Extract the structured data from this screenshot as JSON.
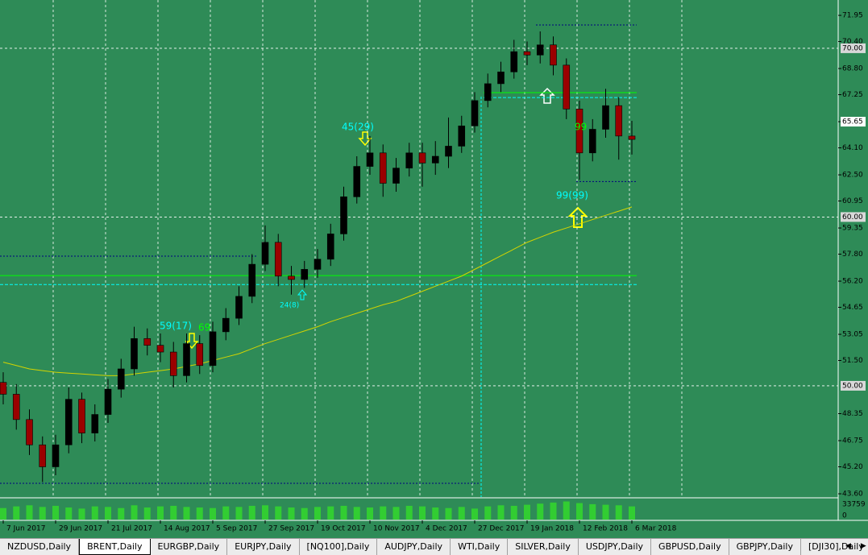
{
  "chart_data": {
    "type": "candlestick",
    "categories": [
      "7 Jun 2017",
      null,
      null,
      null,
      "29 Jun 2017",
      null,
      null,
      null,
      "21 Jul 2017",
      null,
      null,
      null,
      "14 Aug 2017",
      null,
      null,
      null,
      "5 Sep 2017",
      null,
      null,
      null,
      "27 Sep 2017",
      null,
      null,
      null,
      "19 Oct 2017",
      null,
      null,
      null,
      "10 Nov 2017",
      null,
      null,
      null,
      "4 Dec 2017",
      null,
      null,
      null,
      "27 Dec 2017",
      null,
      null,
      null,
      "19 Jan 2018",
      null,
      null,
      null,
      "12 Feb 2018",
      null,
      null,
      null,
      "6 Mar 2018"
    ],
    "open": [
      50.2,
      49.5,
      48.0,
      46.5,
      45.2,
      46.5,
      49.2,
      47.2,
      48.3,
      49.8,
      51.0,
      52.8,
      52.4,
      52.0,
      50.6,
      52.5,
      51.2,
      53.2,
      54.0,
      55.3,
      57.2,
      58.5,
      56.5,
      56.3,
      56.9,
      57.5,
      59.0,
      61.2,
      63.0,
      63.8,
      62.0,
      62.9,
      63.8,
      63.2,
      63.6,
      64.2,
      65.4,
      66.9,
      67.9,
      68.6,
      69.8,
      69.6,
      70.2,
      69.0,
      66.4,
      63.8,
      65.2,
      66.6,
      64.8
    ],
    "high": [
      50.8,
      50.1,
      48.6,
      47.0,
      47.1,
      49.9,
      49.6,
      48.9,
      50.4,
      51.6,
      53.5,
      53.4,
      53.1,
      52.6,
      53.1,
      53.0,
      53.8,
      54.6,
      55.9,
      57.8,
      59.5,
      59.0,
      57.1,
      57.4,
      58.1,
      59.6,
      61.8,
      63.6,
      64.8,
      64.3,
      63.5,
      64.4,
      64.4,
      64.5,
      65.9,
      66.0,
      67.4,
      68.5,
      69.2,
      70.5,
      70.4,
      71.0,
      70.7,
      69.4,
      66.9,
      65.8,
      67.6,
      67.1,
      65.7
    ],
    "low": [
      48.9,
      47.4,
      45.9,
      44.3,
      44.7,
      46.0,
      46.6,
      46.7,
      47.8,
      49.3,
      50.6,
      51.8,
      51.4,
      49.9,
      50.2,
      50.7,
      50.8,
      52.7,
      53.6,
      54.9,
      56.8,
      55.9,
      55.4,
      55.8,
      56.4,
      57.1,
      58.6,
      60.8,
      62.5,
      61.2,
      61.5,
      62.4,
      61.8,
      62.5,
      62.9,
      63.8,
      65.0,
      66.5,
      67.4,
      68.2,
      69.0,
      69.1,
      68.4,
      65.8,
      62.2,
      63.3,
      64.7,
      63.4,
      63.7
    ],
    "close": [
      49.5,
      48.0,
      46.5,
      45.2,
      46.5,
      49.2,
      47.2,
      48.3,
      49.8,
      51.0,
      52.8,
      52.4,
      52.0,
      50.6,
      52.5,
      51.2,
      53.2,
      54.0,
      55.3,
      57.2,
      58.5,
      56.5,
      56.3,
      56.9,
      57.5,
      59.0,
      61.2,
      63.0,
      63.8,
      62.0,
      62.9,
      63.8,
      63.2,
      63.6,
      64.2,
      65.4,
      66.9,
      67.9,
      68.6,
      69.8,
      69.6,
      70.2,
      69.0,
      66.4,
      63.8,
      65.2,
      66.6,
      64.8,
      64.6
    ],
    "ma": {
      "color": "#d4d400",
      "values": [
        51.4,
        51.2,
        51.0,
        50.9,
        50.8,
        50.75,
        50.7,
        50.65,
        50.6,
        50.6,
        50.7,
        50.8,
        50.9,
        51.0,
        51.15,
        51.3,
        51.5,
        51.7,
        51.9,
        52.2,
        52.5,
        52.75,
        53.0,
        53.25,
        53.5,
        53.8,
        54.05,
        54.3,
        54.55,
        54.8,
        55.0,
        55.3,
        55.6,
        55.9,
        56.2,
        56.5,
        56.9,
        57.3,
        57.7,
        58.1,
        58.5,
        58.8,
        59.1,
        59.35,
        59.6,
        59.85,
        60.1,
        60.35,
        60.6
      ]
    },
    "volume": [
      21000,
      24000,
      26000,
      23000,
      25000,
      22000,
      20000,
      24000,
      23000,
      21000,
      26000,
      22000,
      24000,
      25000,
      23000,
      22000,
      21000,
      24000,
      23000,
      25000,
      26000,
      24000,
      22000,
      21000,
      23000,
      24000,
      25000,
      23000,
      22000,
      24000,
      23000,
      25000,
      24000,
      22000,
      21000,
      23000,
      20000,
      24000,
      26000,
      25000,
      27000,
      29000,
      31000,
      33000,
      30000,
      28000,
      27000,
      26000,
      24000
    ],
    "vol_lim": [
      0,
      33759
    ],
    "vol_ticks": [
      33759,
      0
    ],
    "up_color": "#000000",
    "down_color": "#9b0000",
    "ylim": [
      43.41,
      72.86
    ],
    "yticks": [
      71.95,
      {
        "value": 70.4,
        "label": "70.40"
      },
      {
        "value": 68.8,
        "label": "68.80"
      },
      67.25,
      65.65,
      {
        "value": 64.1,
        "label": "64.10"
      },
      {
        "value": 62.5,
        "label": "62.50"
      },
      60.95,
      59.35,
      {
        "value": 57.8,
        "label": "57.80"
      },
      {
        "value": 56.2,
        "label": "56.20"
      },
      54.65,
      53.05,
      {
        "value": 51.5,
        "label": "51.50"
      },
      48.35,
      46.75,
      {
        "value": 45.2,
        "label": "45.20"
      },
      {
        "value": 43.6,
        "label": "43.60"
      }
    ],
    "current_tick": 4,
    "grid_levels": [
      {
        "value": 70,
        "label": "70.00"
      },
      {
        "value": 60,
        "label": "60.00"
      },
      {
        "value": 50,
        "label": "50.00"
      }
    ],
    "levels": [
      {
        "value": 56.53,
        "color": "#00ff00"
      },
      {
        "value": 56.0,
        "color": "#00ffff"
      },
      {
        "value": 67.37,
        "color": "#00ff00"
      },
      {
        "value": 67.08,
        "color": "#00ffff"
      },
      {
        "value": 71.38,
        "color": "#000080"
      },
      {
        "value": 44.22,
        "color": "#000080"
      },
      {
        "value": 57.68,
        "color": "#000080"
      },
      {
        "value": 62.1,
        "color": "#000080"
      }
    ],
    "annotations": [
      {
        "text": "45(29)",
        "color": "#00ffff"
      },
      {
        "text": "59(17)",
        "color": "#00ffff"
      },
      {
        "text": "69",
        "color": "#00ff00"
      },
      {
        "text": "24(8)",
        "color": "#00ffff"
      },
      {
        "text": "99(99)",
        "color": "#00ffff"
      },
      {
        "text": "99",
        "color": "#00ff00"
      }
    ]
  },
  "tabs": [
    "NZDUSD,Daily",
    "BRENT,Daily",
    "EURGBP,Daily",
    "EURJPY,Daily",
    "[NQ100],Daily",
    "AUDJPY,Daily",
    "WTI,Daily",
    "SILVER,Daily",
    "USDJPY,Daily",
    "GBPUSD,Daily",
    "GBPJPY,Daily",
    "[DJI30],Daily"
  ],
  "active_tab": 1
}
